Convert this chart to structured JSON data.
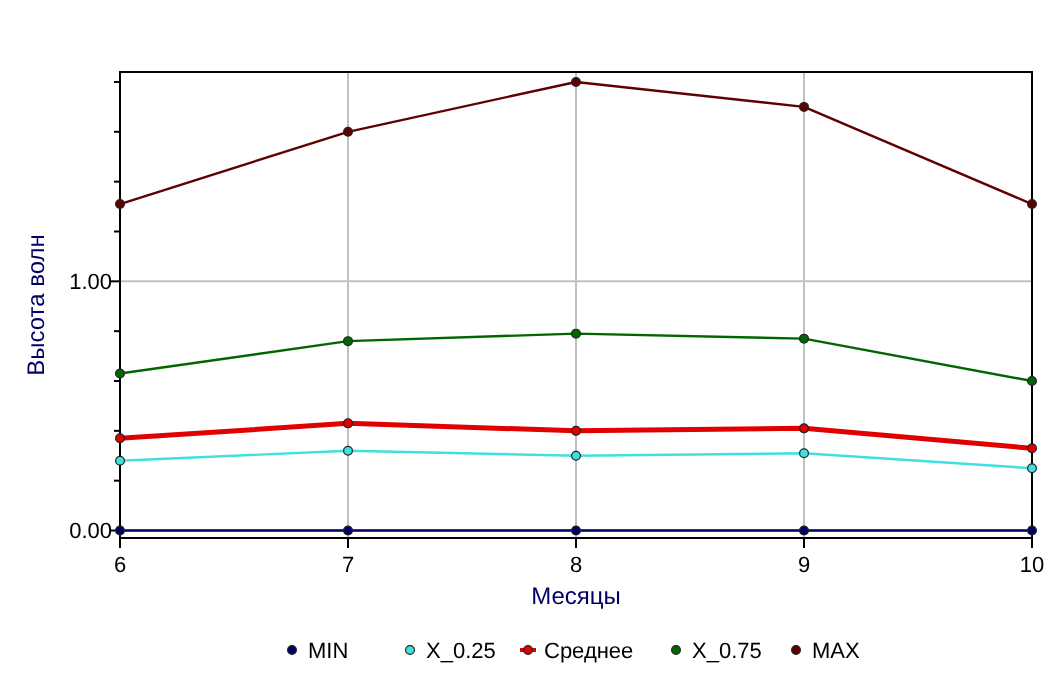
{
  "chart_data": {
    "type": "line",
    "xlabel": "Месяцы",
    "ylabel": "Высота волн",
    "x": [
      6,
      7,
      8,
      9,
      10
    ],
    "xlim": [
      6,
      10
    ],
    "xticks": [
      6,
      7,
      8,
      9,
      10
    ],
    "ylim": [
      -0.03,
      1.84
    ],
    "yticks": [
      {
        "value": 0,
        "label": "0.00"
      },
      {
        "value": 0.2,
        "label": null
      },
      {
        "value": 0.4,
        "label": null
      },
      {
        "value": 0.6,
        "label": null
      },
      {
        "value": 0.8,
        "label": null
      },
      {
        "value": 1,
        "label": "1.00"
      },
      {
        "value": 1.2,
        "label": null
      },
      {
        "value": 1.4,
        "label": null
      },
      {
        "value": 1.6,
        "label": null
      },
      {
        "value": 1.8,
        "label": null
      }
    ],
    "grid": true,
    "legend": "bottom",
    "marker": "circle",
    "line_style": "solid",
    "series": [
      {
        "name": "MIN",
        "color": "#000066",
        "values": [
          0,
          0,
          0,
          0,
          0
        ]
      },
      {
        "name": "X_0.25",
        "color": "#40e0e0",
        "values": [
          0.28,
          0.32,
          0.3,
          0.31,
          0.25
        ]
      },
      {
        "name": "Среднее",
        "color": "#e00000",
        "values": [
          0.37,
          0.43,
          0.4,
          0.41,
          0.33
        ]
      },
      {
        "name": "X_0.75",
        "color": "#006600",
        "values": [
          0.63,
          0.76,
          0.79,
          0.77,
          0.6
        ]
      },
      {
        "name": "MAX",
        "color": "#600000",
        "values": [
          1.31,
          1.6,
          1.8,
          1.7,
          1.31
        ]
      }
    ]
  }
}
